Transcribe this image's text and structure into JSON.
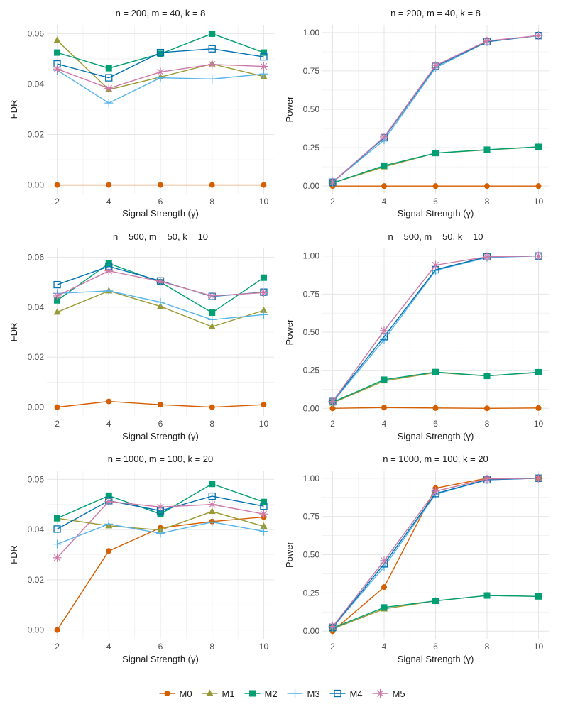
{
  "legend": {
    "items": [
      {
        "name": "M0",
        "color": "#D55E00",
        "marker": "circle"
      },
      {
        "name": "M1",
        "color": "#999933",
        "marker": "triangle"
      },
      {
        "name": "M2",
        "color": "#009E73",
        "marker": "square-filled"
      },
      {
        "name": "M3",
        "color": "#56B4E9",
        "marker": "plus"
      },
      {
        "name": "M4",
        "color": "#0072B2",
        "marker": "square-open"
      },
      {
        "name": "M5",
        "color": "#CC79A7",
        "marker": "asterisk"
      }
    ]
  },
  "chart_data": [
    {
      "type": "line",
      "title": "n = 200, m = 40, k = 8",
      "xlabel": "Signal Strength (γ)",
      "ylabel": "FDR",
      "x": [
        2,
        4,
        6,
        8,
        10
      ],
      "xticks": [
        "2",
        "4",
        "6",
        "8",
        "10"
      ],
      "yticks": [
        "0.00",
        "0.02",
        "0.04",
        "0.06"
      ],
      "yticks_values": [
        0,
        0.02,
        0.04,
        0.06
      ],
      "ylim": [
        -0.0035,
        0.0635
      ],
      "series": [
        {
          "name": "M0",
          "values": [
            0.0,
            0.0,
            0.0,
            0.0,
            0.0
          ]
        },
        {
          "name": "M1",
          "values": [
            0.0573,
            0.0378,
            0.0428,
            0.048,
            0.043
          ]
        },
        {
          "name": "M2",
          "values": [
            0.0525,
            0.0463,
            0.052,
            0.06,
            0.0525
          ]
        },
        {
          "name": "M3",
          "values": [
            0.0455,
            0.0325,
            0.0425,
            0.042,
            0.044
          ]
        },
        {
          "name": "M4",
          "values": [
            0.048,
            0.0425,
            0.0525,
            0.054,
            0.0508
          ]
        },
        {
          "name": "M5",
          "values": [
            0.046,
            0.0383,
            0.0448,
            0.0478,
            0.047
          ]
        }
      ]
    },
    {
      "type": "line",
      "title": "n = 200, m = 40, k = 8",
      "xlabel": "Signal Strength (γ)",
      "ylabel": "Power",
      "x": [
        2,
        4,
        6,
        8,
        10
      ],
      "xticks": [
        "2",
        "4",
        "6",
        "8",
        "10"
      ],
      "yticks": [
        "0.00",
        "0.25",
        "0.50",
        "0.75",
        "1.00"
      ],
      "yticks_values": [
        0,
        0.25,
        0.5,
        0.75,
        1.0
      ],
      "ylim": [
        -0.05,
        1.05
      ],
      "series": [
        {
          "name": "M0",
          "values": [
            0.0,
            0.0,
            0.0,
            0.0,
            0.0
          ]
        },
        {
          "name": "M1",
          "values": [
            0.02,
            0.125,
            0.215,
            0.235,
            0.255
          ]
        },
        {
          "name": "M2",
          "values": [
            0.02,
            0.133,
            0.215,
            0.237,
            0.255
          ]
        },
        {
          "name": "M3",
          "values": [
            0.025,
            0.3,
            0.77,
            0.94,
            0.98
          ]
        },
        {
          "name": "M4",
          "values": [
            0.025,
            0.315,
            0.78,
            0.94,
            0.98
          ]
        },
        {
          "name": "M5",
          "values": [
            0.025,
            0.32,
            0.785,
            0.945,
            0.98
          ]
        }
      ]
    },
    {
      "type": "line",
      "title": "n = 500, m = 50, k = 10",
      "xlabel": "Signal Strength (γ)",
      "ylabel": "FDR",
      "x": [
        2,
        4,
        6,
        8,
        10
      ],
      "xticks": [
        "2",
        "4",
        "6",
        "8",
        "10"
      ],
      "yticks": [
        "0.00",
        "0.02",
        "0.04",
        "0.06"
      ],
      "yticks_values": [
        0,
        0.02,
        0.04,
        0.06
      ],
      "ylim": [
        -0.0035,
        0.0635
      ],
      "series": [
        {
          "name": "M0",
          "values": [
            0.0,
            0.0023,
            0.001,
            0.0,
            0.001
          ]
        },
        {
          "name": "M1",
          "values": [
            0.038,
            0.0465,
            0.0403,
            0.0322,
            0.0387
          ]
        },
        {
          "name": "M2",
          "values": [
            0.0427,
            0.0575,
            0.05,
            0.0378,
            0.0518
          ]
        },
        {
          "name": "M3",
          "values": [
            0.0455,
            0.0465,
            0.042,
            0.035,
            0.037
          ]
        },
        {
          "name": "M4",
          "values": [
            0.049,
            0.0563,
            0.0505,
            0.0443,
            0.046
          ]
        },
        {
          "name": "M5",
          "values": [
            0.0445,
            0.0545,
            0.0503,
            0.0445,
            0.0458
          ]
        }
      ]
    },
    {
      "type": "line",
      "title": "n = 500, m = 50, k = 10",
      "xlabel": "Signal Strength (γ)",
      "ylabel": "Power",
      "x": [
        2,
        4,
        6,
        8,
        10
      ],
      "xticks": [
        "2",
        "4",
        "6",
        "8",
        "10"
      ],
      "yticks": [
        "0.00",
        "0.25",
        "0.50",
        "0.75",
        "1.00"
      ],
      "yticks_values": [
        0,
        0.25,
        0.5,
        0.75,
        1.0
      ],
      "ylim": [
        -0.05,
        1.05
      ],
      "series": [
        {
          "name": "M0",
          "values": [
            0.0,
            0.005,
            0.002,
            0.0,
            0.002
          ]
        },
        {
          "name": "M1",
          "values": [
            0.035,
            0.18,
            0.235,
            0.213,
            0.235
          ]
        },
        {
          "name": "M2",
          "values": [
            0.04,
            0.188,
            0.238,
            0.213,
            0.237
          ]
        },
        {
          "name": "M3",
          "values": [
            0.04,
            0.45,
            0.905,
            0.99,
            1.0
          ]
        },
        {
          "name": "M4",
          "values": [
            0.045,
            0.47,
            0.91,
            0.995,
            1.0
          ]
        },
        {
          "name": "M5",
          "values": [
            0.045,
            0.51,
            0.94,
            0.995,
            1.0
          ]
        }
      ]
    },
    {
      "type": "line",
      "title": "n = 1000, m = 100, k = 20",
      "xlabel": "Signal Strength (γ)",
      "ylabel": "FDR",
      "x": [
        2,
        4,
        6,
        8,
        10
      ],
      "xticks": [
        "2",
        "4",
        "6",
        "8",
        "10"
      ],
      "yticks": [
        "0.00",
        "0.02",
        "0.04",
        "0.06"
      ],
      "yticks_values": [
        0,
        0.02,
        0.04,
        0.06
      ],
      "ylim": [
        -0.0035,
        0.0635
      ],
      "series": [
        {
          "name": "M0",
          "values": [
            0.0,
            0.0315,
            0.0407,
            0.0432,
            0.045
          ]
        },
        {
          "name": "M1",
          "values": [
            0.0445,
            0.0415,
            0.0398,
            0.0472,
            0.0413
          ]
        },
        {
          "name": "M2",
          "values": [
            0.0445,
            0.0535,
            0.0462,
            0.0582,
            0.051
          ]
        },
        {
          "name": "M3",
          "values": [
            0.0342,
            0.0422,
            0.0385,
            0.043,
            0.0393
          ]
        },
        {
          "name": "M4",
          "values": [
            0.0402,
            0.0515,
            0.0475,
            0.0533,
            0.0493
          ]
        },
        {
          "name": "M5",
          "values": [
            0.0288,
            0.0512,
            0.049,
            0.05,
            0.0462
          ]
        }
      ]
    },
    {
      "type": "line",
      "title": "n = 1000, m = 100, k = 20",
      "xlabel": "Signal Strength (γ)",
      "ylabel": "Power",
      "x": [
        2,
        4,
        6,
        8,
        10
      ],
      "xticks": [
        "2",
        "4",
        "6",
        "8",
        "10"
      ],
      "yticks": [
        "0.00",
        "0.25",
        "0.50",
        "0.75",
        "1.00"
      ],
      "yticks_values": [
        0,
        0.25,
        0.5,
        0.75,
        1.0
      ],
      "ylim": [
        -0.05,
        1.05
      ],
      "series": [
        {
          "name": "M0",
          "values": [
            0.0,
            0.288,
            0.935,
            1.0,
            1.0
          ]
        },
        {
          "name": "M1",
          "values": [
            0.015,
            0.145,
            0.198,
            0.233,
            0.227
          ]
        },
        {
          "name": "M2",
          "values": [
            0.02,
            0.155,
            0.198,
            0.233,
            0.227
          ]
        },
        {
          "name": "M3",
          "values": [
            0.025,
            0.42,
            0.895,
            0.99,
            1.0
          ]
        },
        {
          "name": "M4",
          "values": [
            0.025,
            0.44,
            0.9,
            0.99,
            1.0
          ]
        },
        {
          "name": "M5",
          "values": [
            0.03,
            0.46,
            0.915,
            0.995,
            1.0
          ]
        }
      ]
    }
  ]
}
